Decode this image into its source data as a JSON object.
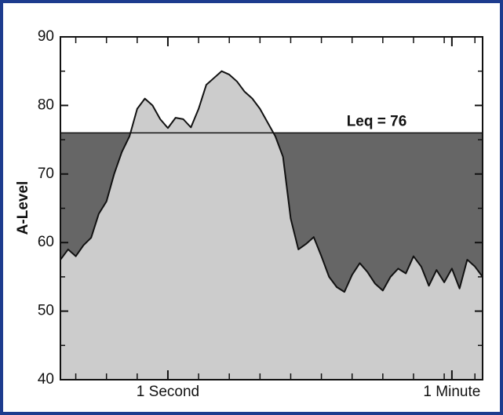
{
  "chart_data": {
    "type": "area",
    "y_label": "A-Level",
    "annotation": "Leq = 76",
    "leq": 76,
    "categories": [
      null,
      null,
      null,
      null,
      null,
      null,
      null,
      null,
      null,
      null,
      null,
      null,
      null,
      null,
      "1 Second",
      null,
      null,
      null,
      null,
      null,
      null,
      null,
      null,
      null,
      null,
      null,
      null,
      null,
      null,
      null,
      null,
      null,
      null,
      null,
      null,
      null,
      null,
      null,
      null,
      null,
      null,
      null,
      null,
      null,
      null,
      null,
      null,
      null,
      null,
      null,
      null,
      "1 Minute",
      null,
      null,
      null,
      null
    ],
    "values": [
      57.5,
      59,
      58,
      59.6,
      60.7,
      64.2,
      66,
      70,
      73.2,
      75.5,
      79.5,
      81,
      80,
      78,
      76.7,
      78.2,
      78,
      76.8,
      79.5,
      83,
      84,
      85,
      84.5,
      83.5,
      82,
      81,
      79.5,
      77.5,
      75.5,
      72.5,
      63.5,
      59,
      59.8,
      60.8,
      58,
      55,
      53.5,
      52.8,
      55.3,
      57,
      55.7,
      54,
      53,
      55,
      56.2,
      55.5,
      58,
      56.5,
      53.7,
      56,
      54.2,
      56.2,
      53.3,
      57.5,
      56.5,
      55
    ],
    "ylim": [
      40,
      90
    ],
    "yticks": [
      40,
      50,
      60,
      70,
      80,
      90
    ],
    "area_color": "#cccccc",
    "leq_color": "#666666",
    "line_color": "#111111"
  }
}
